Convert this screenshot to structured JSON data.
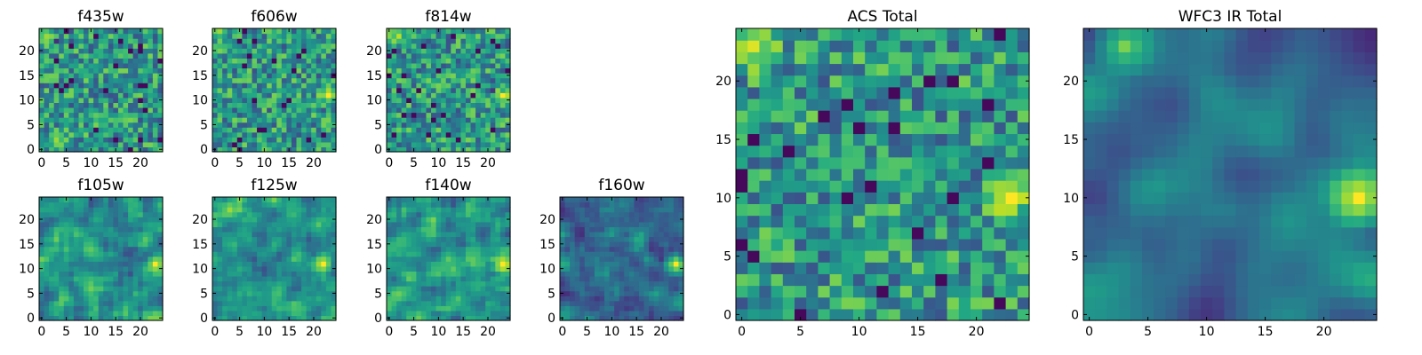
{
  "chart_data": [
    {
      "type": "heatmap",
      "title": "f435w",
      "xticks": [
        0,
        5,
        10,
        15,
        20
      ],
      "yticks": [
        0,
        5,
        10,
        15,
        20
      ],
      "xlim": [
        -0.5,
        24.5
      ],
      "ylim": [
        -0.5,
        24.5
      ],
      "grid_size": 25,
      "colormap": "viridis",
      "features": [
        {
          "x": 1,
          "y": 23,
          "value": 0.85
        },
        {
          "x": 3,
          "y": 2,
          "value": 0.85
        }
      ]
    },
    {
      "type": "heatmap",
      "title": "f606w",
      "xticks": [
        0,
        5,
        10,
        15,
        20
      ],
      "yticks": [
        0,
        5,
        10,
        15,
        20
      ],
      "xlim": [
        -0.5,
        24.5
      ],
      "ylim": [
        -0.5,
        24.5
      ],
      "grid_size": 25,
      "colormap": "viridis",
      "features": [
        {
          "x": 23,
          "y": 11,
          "value": 1.0
        },
        {
          "x": 1,
          "y": 24,
          "value": 0.85
        }
      ]
    },
    {
      "type": "heatmap",
      "title": "f814w",
      "xticks": [
        0,
        5,
        10,
        15,
        20
      ],
      "yticks": [
        0,
        5,
        10,
        15,
        20
      ],
      "xlim": [
        -0.5,
        24.5
      ],
      "ylim": [
        -0.5,
        24.5
      ],
      "grid_size": 25,
      "colormap": "viridis",
      "features": [
        {
          "x": 23,
          "y": 11,
          "value": 1.0
        },
        {
          "x": 2,
          "y": 23,
          "value": 0.9
        }
      ]
    },
    {
      "type": "heatmap",
      "title": "f105w",
      "xticks": [
        0,
        5,
        10,
        15,
        20
      ],
      "yticks": [
        0,
        5,
        10,
        15,
        20
      ],
      "xlim": [
        -0.5,
        24.5
      ],
      "ylim": [
        -0.5,
        24.5
      ],
      "grid_size": 25,
      "colormap": "viridis",
      "features": [
        {
          "x": 23,
          "y": 11,
          "value": 1.0
        },
        {
          "x": 10,
          "y": 14,
          "value": 0.75
        }
      ]
    },
    {
      "type": "heatmap",
      "title": "f125w",
      "xticks": [
        0,
        5,
        10,
        15,
        20
      ],
      "yticks": [
        0,
        5,
        10,
        15,
        20
      ],
      "xlim": [
        -0.5,
        24.5
      ],
      "ylim": [
        -0.5,
        24.5
      ],
      "grid_size": 25,
      "colormap": "viridis",
      "features": [
        {
          "x": 22,
          "y": 11,
          "value": 1.0
        },
        {
          "x": 3,
          "y": 22,
          "value": 0.85
        }
      ]
    },
    {
      "type": "heatmap",
      "title": "f140w",
      "xticks": [
        0,
        5,
        10,
        15,
        20
      ],
      "yticks": [
        0,
        5,
        10,
        15,
        20
      ],
      "xlim": [
        -0.5,
        24.5
      ],
      "ylim": [
        -0.5,
        24.5
      ],
      "grid_size": 25,
      "colormap": "viridis",
      "features": [
        {
          "x": 23,
          "y": 11,
          "value": 1.0
        },
        {
          "x": 12,
          "y": 12,
          "value": 0.75
        }
      ]
    },
    {
      "type": "heatmap",
      "title": "f160w",
      "xticks": [
        0,
        5,
        10,
        15,
        20
      ],
      "yticks": [
        0,
        5,
        10,
        15,
        20
      ],
      "xlim": [
        -0.5,
        24.5
      ],
      "ylim": [
        -0.5,
        24.5
      ],
      "grid_size": 25,
      "colormap": "viridis",
      "features": [
        {
          "x": 23,
          "y": 11,
          "value": 1.0
        }
      ]
    },
    {
      "type": "heatmap",
      "title": "ACS Total",
      "xticks": [
        0,
        5,
        10,
        15,
        20
      ],
      "yticks": [
        0,
        5,
        10,
        15,
        20
      ],
      "xlim": [
        -0.5,
        24.5
      ],
      "ylim": [
        -0.5,
        24.5
      ],
      "grid_size": 25,
      "colormap": "viridis",
      "features": [
        {
          "x": 23,
          "y": 10,
          "value": 1.0
        },
        {
          "x": 1,
          "y": 23,
          "value": 0.95
        }
      ]
    },
    {
      "type": "heatmap",
      "title": "WFC3 IR Total",
      "xticks": [
        0,
        5,
        10,
        15,
        20
      ],
      "yticks": [
        0,
        5,
        10,
        15,
        20
      ],
      "xlim": [
        -0.5,
        24.5
      ],
      "ylim": [
        -0.5,
        24.5
      ],
      "grid_size": 25,
      "colormap": "viridis",
      "features": [
        {
          "x": 23,
          "y": 10,
          "value": 1.0
        },
        {
          "x": 3,
          "y": 23,
          "value": 0.8
        }
      ]
    }
  ]
}
